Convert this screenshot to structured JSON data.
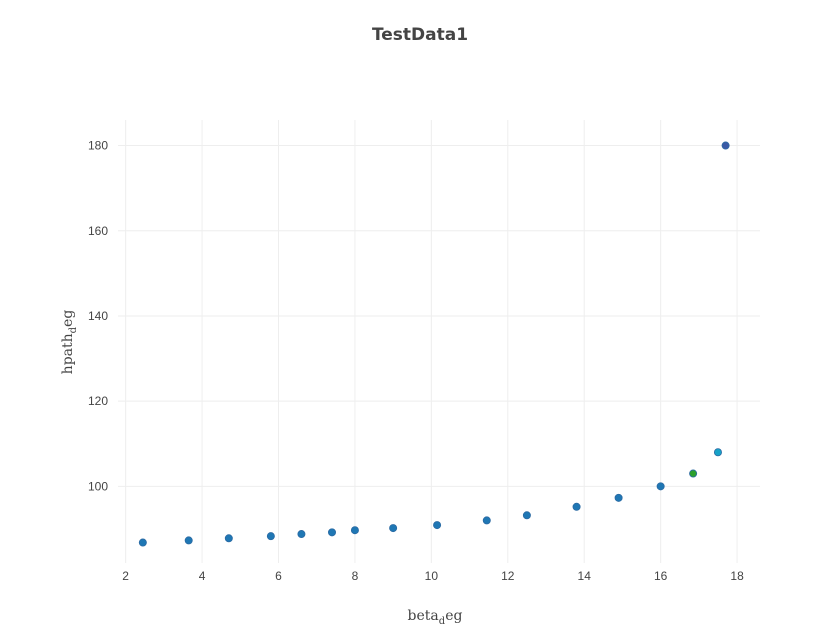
{
  "chart_data": {
    "type": "scatter",
    "title": "TestData1",
    "xlabel": {
      "base": "beta",
      "sub": "d",
      "rest": "eg"
    },
    "ylabel": {
      "base": "hpath",
      "sub": "d",
      "rest": "eg"
    },
    "xlim": [
      1.8,
      18.6
    ],
    "ylim": [
      82,
      186
    ],
    "grid": true,
    "x_ticks": [
      2,
      4,
      6,
      8,
      10,
      12,
      14,
      16,
      18
    ],
    "y_ticks": [
      100,
      120,
      140,
      160,
      180
    ],
    "x_tick_labels": [
      "2",
      "4",
      "6",
      "8",
      "10",
      "12",
      "14",
      "16",
      "18"
    ],
    "y_tick_labels": [
      "100",
      "120",
      "140",
      "160",
      "180"
    ],
    "points": [
      {
        "x": 2.45,
        "y": 86.8,
        "color": "#1f77b4"
      },
      {
        "x": 3.65,
        "y": 87.3,
        "color": "#1f77b4"
      },
      {
        "x": 4.7,
        "y": 87.8,
        "color": "#1f77b4"
      },
      {
        "x": 5.8,
        "y": 88.3,
        "color": "#1f77b4"
      },
      {
        "x": 6.6,
        "y": 88.8,
        "color": "#1f77b4"
      },
      {
        "x": 7.4,
        "y": 89.2,
        "color": "#1f77b4"
      },
      {
        "x": 8.0,
        "y": 89.7,
        "color": "#1f77b4"
      },
      {
        "x": 9.0,
        "y": 90.2,
        "color": "#1f77b4"
      },
      {
        "x": 10.15,
        "y": 90.9,
        "color": "#1f77b4"
      },
      {
        "x": 11.45,
        "y": 92.0,
        "color": "#1f77b4"
      },
      {
        "x": 12.5,
        "y": 93.2,
        "color": "#1f77b4"
      },
      {
        "x": 13.8,
        "y": 95.2,
        "color": "#1f77b4"
      },
      {
        "x": 14.9,
        "y": 97.3,
        "color": "#1f77b4"
      },
      {
        "x": 16.0,
        "y": 100.0,
        "color": "#1f77b4"
      },
      {
        "x": 16.85,
        "y": 103.0,
        "color": "#2ca02c"
      },
      {
        "x": 17.5,
        "y": 108.0,
        "color": "#17a2c7"
      },
      {
        "x": 17.7,
        "y": 180.0,
        "color": "#3a5aa6"
      }
    ]
  }
}
